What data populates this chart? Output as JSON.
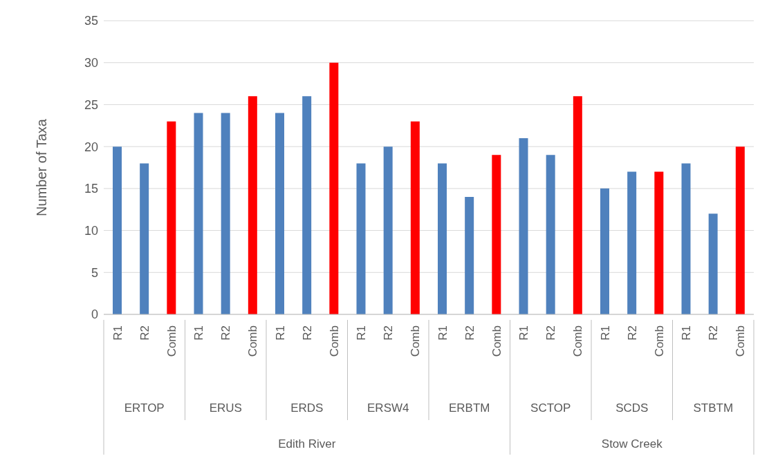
{
  "chart_data": {
    "type": "bar",
    "ylabel": "Number of Taxa",
    "categories": [
      "R1",
      "R2",
      "Comb",
      "R1",
      "R2",
      "Comb",
      "R1",
      "R2",
      "Comb",
      "R1",
      "R2",
      "Comb",
      "R1",
      "R2",
      "Comb",
      "R1",
      "R2",
      "Comb",
      "R1",
      "R2",
      "Comb",
      "R1",
      "R2",
      "Comb"
    ],
    "values": [
      20,
      18,
      23,
      24,
      24,
      26,
      24,
      26,
      30,
      18,
      20,
      23,
      18,
      14,
      19,
      21,
      19,
      26,
      15,
      17,
      17,
      18,
      12,
      20
    ],
    "colors": [
      "#4f81bd",
      "#4f81bd",
      "#ff0000",
      "#4f81bd",
      "#4f81bd",
      "#ff0000",
      "#4f81bd",
      "#4f81bd",
      "#ff0000",
      "#4f81bd",
      "#4f81bd",
      "#ff0000",
      "#4f81bd",
      "#4f81bd",
      "#ff0000",
      "#4f81bd",
      "#4f81bd",
      "#ff0000",
      "#4f81bd",
      "#4f81bd",
      "#ff0000",
      "#4f81bd",
      "#4f81bd",
      "#ff0000"
    ],
    "annotations": [
      "ERTOP",
      "ERUS",
      "ERDS",
      "ERSW4",
      "ERBTM",
      "SCTOP",
      "SCDS",
      "STBTM",
      "Edith River",
      "Stow Creek"
    ],
    "ylim": [
      0,
      35
    ],
    "yticks": [
      0,
      5,
      10,
      15,
      20,
      25,
      30,
      35
    ],
    "grid": "y",
    "legend": false
  }
}
